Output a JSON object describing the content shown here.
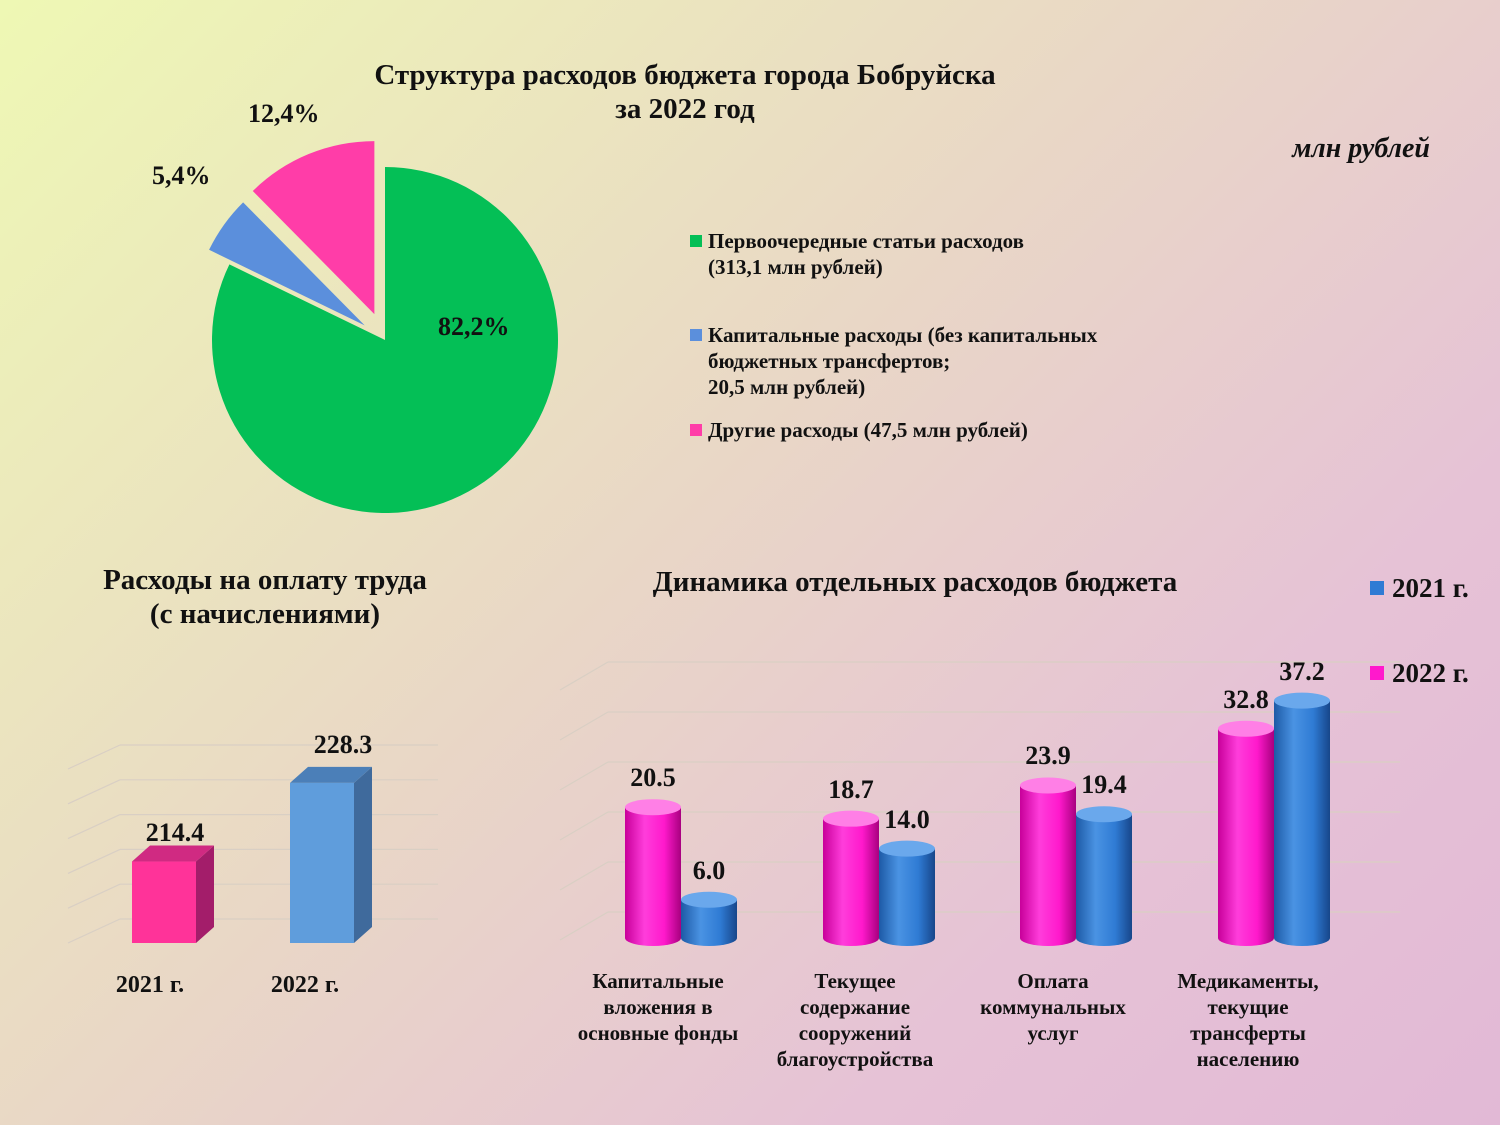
{
  "chart_data": [
    {
      "type": "pie",
      "title": "Структура расходов бюджета города Бобруйска\nза 2022 год",
      "unit_note": "млн рублей",
      "slices": [
        {
          "name": "Первоочередные статьи расходов\n(313,1 млн рублей)",
          "value": 82.2,
          "label": "82,2%",
          "color": "#04bf56"
        },
        {
          "name": "Капитальные расходы (без капитальных\nбюджетных трансфертов;\n20,5 млн рублей)",
          "value": 5.4,
          "label": "5,4%",
          "color": "#5b8fdc"
        },
        {
          "name": "Другие расходы  (47,5 млн рублей)",
          "value": 12.4,
          "label": "12,4%",
          "color": "#ff3da8"
        }
      ]
    },
    {
      "type": "bar",
      "title": "Расходы на оплату труда\n(с начислениями)",
      "categories": [
        "2021 г.",
        "2022 г."
      ],
      "values": [
        214.4,
        228.3
      ],
      "labels": [
        "214.4",
        "228.3"
      ],
      "colors": [
        "#ff3399",
        "#5f9ddc"
      ]
    },
    {
      "type": "bar",
      "title": "Динамика отдельных расходов бюджета",
      "categories": [
        "Капитальные\nвложения в\nосновные фонды",
        "Текущее\nсодержание\nсооружений\nблагоустройства",
        "Оплата\nкоммунальных\nуслуг",
        "Медикаменты,\nтекущие\nтрансферты\nнаселению"
      ],
      "series": [
        {
          "name": "2022 г.",
          "color": "#ff19cc",
          "values": [
            20.5,
            18.7,
            23.9,
            32.8
          ],
          "labels": [
            "20.5",
            "18.7",
            "23.9",
            "32.8"
          ]
        },
        {
          "name": "2021 г.",
          "color": "#2f7bd4",
          "values": [
            6.0,
            14.0,
            19.4,
            37.2
          ],
          "labels": [
            "6.0",
            "14.0",
            "19.4",
            "37.2"
          ]
        }
      ],
      "legend": [
        {
          "name": "2021 г.",
          "color": "#2f7bd4"
        },
        {
          "name": "2022 г.",
          "color": "#ff19cc"
        }
      ],
      "legend_position": "top-right"
    }
  ]
}
